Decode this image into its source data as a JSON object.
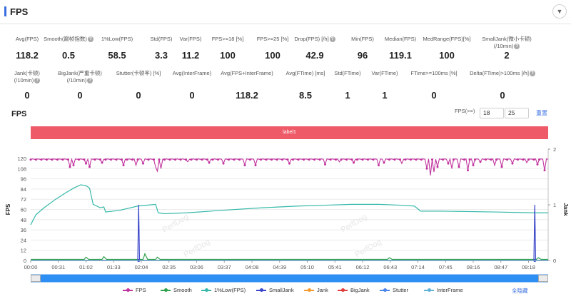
{
  "panel": {
    "title": "FPS"
  },
  "stats_row1": [
    {
      "label": "Avg(FPS)",
      "value": "118.2",
      "help": false
    },
    {
      "label": "Smooth(巅帧指数)",
      "value": "0.5",
      "help": true
    },
    {
      "label": "1%Low(FPS)",
      "value": "58.5",
      "help": false
    },
    {
      "label": "Std(FPS)",
      "value": "3.3",
      "help": false
    },
    {
      "label": "Var(FPS)",
      "value": "11.2",
      "help": false
    },
    {
      "label": "FPS>=18 [%]",
      "value": "100",
      "help": false
    },
    {
      "label": "FPS>=25 [%]",
      "value": "100",
      "help": false
    },
    {
      "label": "Drop(FPS) [/h]",
      "value": "42.9",
      "help": true
    },
    {
      "label": "Min(FPS)",
      "value": "96",
      "help": false
    },
    {
      "label": "Median(FPS)",
      "value": "119.1",
      "help": false
    },
    {
      "label": "MedRange(FPS)[%]",
      "value": "100",
      "help": false
    },
    {
      "label": "SmallJank(微小卡顿)",
      "label2": "(/10min)",
      "value": "2",
      "help": true
    }
  ],
  "stats_row2": [
    {
      "label": "Jank(卡顿)",
      "label2": "(/10min)",
      "value": "0",
      "help": true
    },
    {
      "label": "BigJank(严重卡顿)",
      "label2": "(/10min)",
      "value": "0",
      "help": true
    },
    {
      "label": "Stutter(卡顿率) [%]",
      "value": "0",
      "help": false
    },
    {
      "label": "Avg(InterFrame)",
      "value": "0",
      "help": false
    },
    {
      "label": "Avg(FPS+InterFrame)",
      "value": "118.2",
      "help": false
    },
    {
      "label": "Avg(FTime) [ms]",
      "value": "8.5",
      "help": false
    },
    {
      "label": "Std(FTime)",
      "value": "1",
      "help": false
    },
    {
      "label": "Var(FTime)",
      "value": "1",
      "help": false
    },
    {
      "label": "FTime>=100ms [%]",
      "value": "0",
      "help": false
    },
    {
      "label": "Delta(FTime)>100ms [/h]",
      "value": "0",
      "help": true
    }
  ],
  "chart_controls": {
    "title": "FPS",
    "threshold_label": "FPS(>=)",
    "threshold1": "18",
    "threshold2": "25",
    "reset_label": "重置",
    "label_bar": "label1"
  },
  "chart_data": {
    "type": "line",
    "title": "",
    "ylabel": "FPS",
    "y2label": "Jank",
    "ylim": [
      0,
      120
    ],
    "y2lim": [
      0,
      2
    ],
    "y_ticks": [
      "120",
      "108",
      "96",
      "84",
      "72",
      "60",
      "48",
      "36",
      "24",
      "12",
      "0"
    ],
    "y2_ticks": [
      "2",
      "1",
      "0"
    ],
    "x_ticks": [
      "00:00",
      "00:31",
      "01:02",
      "01:33",
      "02:04",
      "02:35",
      "03:06",
      "03:37",
      "04:08",
      "04:39",
      "05:10",
      "05:41",
      "06:12",
      "06:43",
      "07:14",
      "07:45",
      "08:16",
      "08:47",
      "09:18"
    ],
    "x_seconds_max": 580,
    "series": [
      {
        "name": "FPS",
        "color": "#c2349f",
        "axis": "left",
        "base": 119,
        "dips": [
          [
            44,
            110
          ],
          [
            48,
            112
          ],
          [
            62,
            114
          ],
          [
            65,
            110
          ],
          [
            80,
            115
          ],
          [
            104,
            112
          ],
          [
            117,
            112
          ],
          [
            125,
            114
          ],
          [
            139,
            110
          ],
          [
            141,
            105
          ],
          [
            145,
            108
          ],
          [
            175,
            116
          ],
          [
            200,
            115
          ],
          [
            215,
            114
          ],
          [
            240,
            112
          ],
          [
            251,
            112
          ],
          [
            290,
            114
          ],
          [
            330,
            113
          ],
          [
            345,
            116
          ],
          [
            362,
            115
          ],
          [
            389,
            112
          ],
          [
            395,
            115
          ],
          [
            415,
            114
          ],
          [
            444,
            108
          ],
          [
            447,
            100
          ],
          [
            451,
            104
          ],
          [
            456,
            110
          ],
          [
            468,
            114
          ],
          [
            471,
            108
          ],
          [
            480,
            110
          ],
          [
            490,
            106
          ],
          [
            496,
            112
          ],
          [
            503,
            116
          ],
          [
            519,
            112
          ],
          [
            527,
            110
          ],
          [
            540,
            114
          ],
          [
            555,
            115
          ],
          [
            568,
            113
          ],
          [
            575,
            106
          ]
        ]
      },
      {
        "name": "Smooth",
        "color": "#2ea24a",
        "axis": "right",
        "points": [
          [
            0,
            0.02
          ],
          [
            60,
            0.02
          ],
          [
            62,
            0.06
          ],
          [
            65,
            0.02
          ],
          [
            80,
            0.02
          ],
          [
            82,
            0.07
          ],
          [
            85,
            0.02
          ],
          [
            126,
            0.02
          ],
          [
            128,
            0.12
          ],
          [
            131,
            0.02
          ],
          [
            140,
            0.02
          ],
          [
            142,
            0.06
          ],
          [
            145,
            0.02
          ],
          [
            400,
            0.02
          ],
          [
            402,
            0.05
          ],
          [
            405,
            0.02
          ],
          [
            567,
            0.02
          ],
          [
            569,
            0.05
          ],
          [
            572,
            0.02
          ],
          [
            580,
            0.02
          ]
        ]
      },
      {
        "name": "1%Low(FPS)",
        "color": "#36b9a9",
        "axis": "left",
        "points": [
          [
            0,
            42
          ],
          [
            6,
            54
          ],
          [
            15,
            62
          ],
          [
            28,
            72
          ],
          [
            40,
            80
          ],
          [
            48,
            85
          ],
          [
            56,
            89
          ],
          [
            62,
            88
          ],
          [
            66,
            85
          ],
          [
            70,
            66
          ],
          [
            78,
            62
          ],
          [
            82,
            63
          ],
          [
            84,
            57
          ],
          [
            100,
            59
          ],
          [
            120,
            64
          ],
          [
            140,
            66
          ],
          [
            143,
            56
          ],
          [
            150,
            55
          ],
          [
            175,
            56
          ],
          [
            215,
            59
          ],
          [
            260,
            62
          ],
          [
            300,
            64
          ],
          [
            330,
            65
          ],
          [
            360,
            66
          ],
          [
            390,
            66
          ],
          [
            415,
            65
          ],
          [
            430,
            64
          ],
          [
            437,
            58
          ],
          [
            460,
            58
          ],
          [
            520,
            57
          ],
          [
            565,
            56
          ],
          [
            580,
            56
          ]
        ]
      },
      {
        "name": "SmallJank",
        "color": "#3a46c9",
        "axis": "right",
        "points": [
          [
            0,
            0
          ],
          [
            120,
            0
          ],
          [
            121,
            1
          ],
          [
            122,
            0
          ],
          [
            564,
            0
          ],
          [
            565,
            1
          ],
          [
            566,
            0
          ],
          [
            580,
            0
          ]
        ]
      },
      {
        "name": "Jank",
        "color": "#f59a2d",
        "axis": "right",
        "points": [
          [
            0,
            0
          ],
          [
            580,
            0
          ]
        ]
      },
      {
        "name": "BigJank",
        "color": "#e23b3b",
        "axis": "right",
        "points": [
          [
            0,
            0
          ],
          [
            580,
            0
          ]
        ]
      },
      {
        "name": "Stutter",
        "color": "#4d86e8",
        "axis": "right",
        "points": [
          [
            0,
            0
          ],
          [
            580,
            0
          ]
        ]
      },
      {
        "name": "InterFrame",
        "color": "#5fb3d8",
        "axis": "left",
        "points": [
          [
            0,
            0
          ],
          [
            580,
            0
          ]
        ]
      }
    ]
  },
  "legend_hide_all": "全隐藏",
  "watermark": "PerfDog"
}
